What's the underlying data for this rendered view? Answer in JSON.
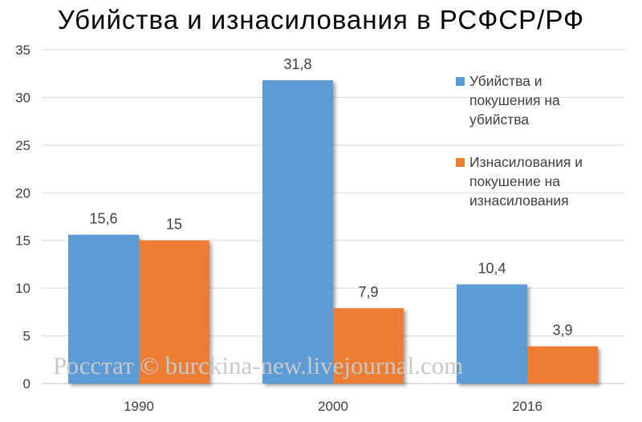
{
  "chart_data": {
    "type": "bar",
    "title": "Убийства и изнасилования в РСФСР/РФ",
    "categories": [
      "1990",
      "2000",
      "2016"
    ],
    "series": [
      {
        "name": "Убийства и покушения на убийства",
        "values": [
          15.6,
          31.8,
          10.4
        ],
        "color": "#5b9bd5"
      },
      {
        "name": "Изнасилования и покушение на изнасилования",
        "values": [
          15,
          7.9,
          3.9
        ],
        "color": "#ed7d31"
      }
    ],
    "data_labels": [
      [
        "15,6",
        "31,8",
        "10,4"
      ],
      [
        "15",
        "7,9",
        "3,9"
      ]
    ],
    "legend_lines": [
      [
        "Убийства и",
        "покушения на",
        "убийства"
      ],
      [
        "Изнасилования и",
        "покушение на",
        "изнасилования"
      ]
    ],
    "ylim": [
      0,
      35
    ],
    "yticks": [
      0,
      5,
      10,
      15,
      20,
      25,
      30,
      35
    ],
    "grid": true,
    "legend_position": "right",
    "watermark": "Росстат © burckina-new.livejournal.com"
  }
}
